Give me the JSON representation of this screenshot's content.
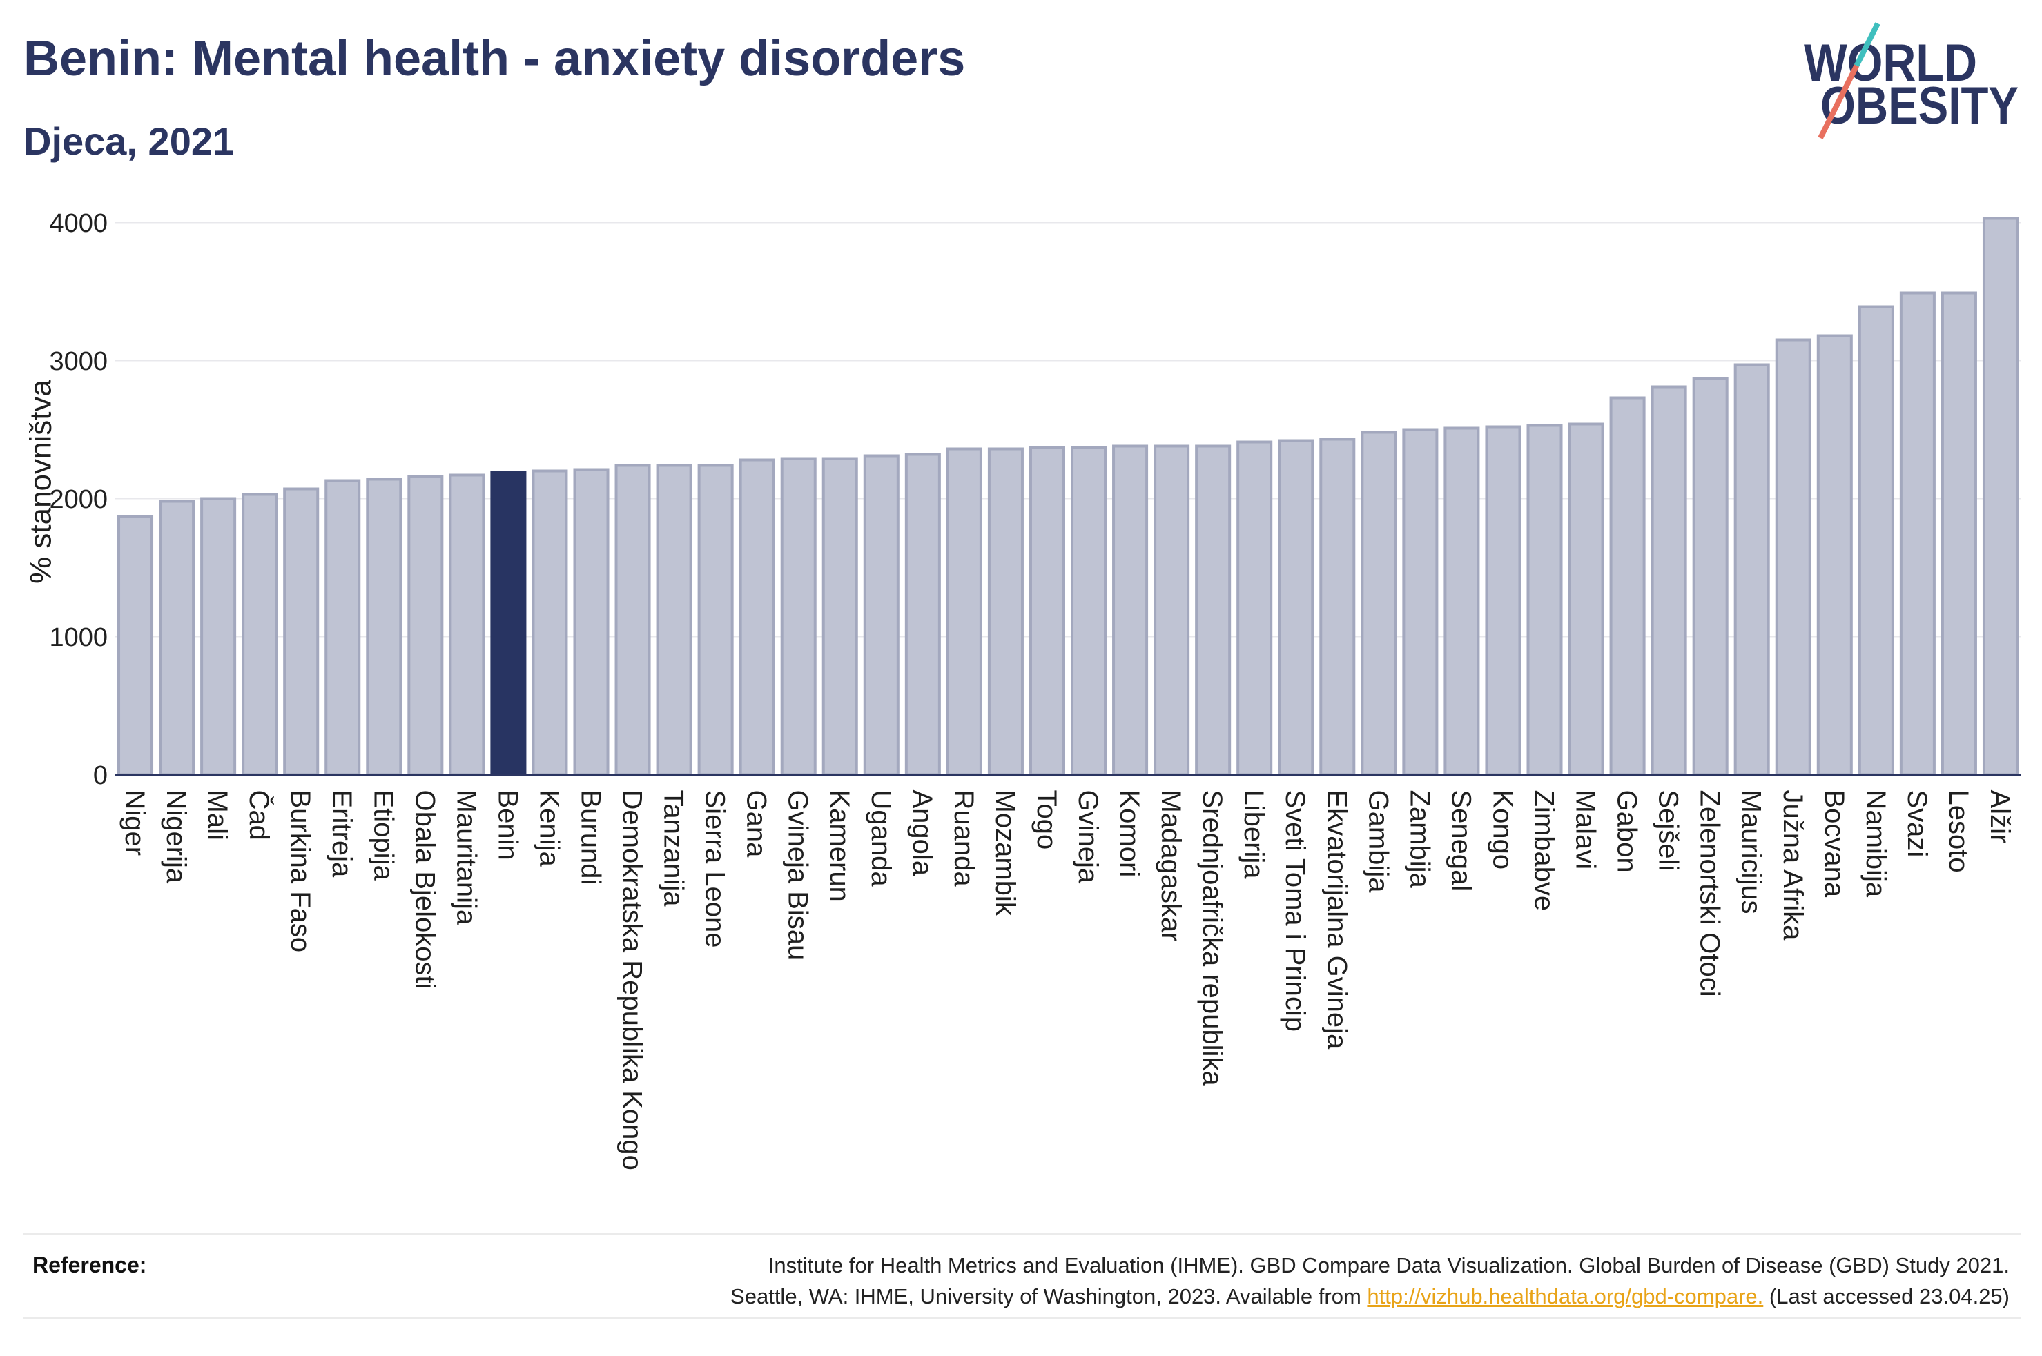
{
  "logo": {
    "line1": "WORLD",
    "line2": "OBESITY",
    "colors": {
      "text": "#2b3561",
      "teal": "#3fbfbe",
      "coral": "#e8705f"
    }
  },
  "chart_data": {
    "type": "bar",
    "title": "Benin: Mental health - anxiety disorders",
    "subtitle": "Djeca, 2021",
    "ylabel": "% stanovništva",
    "ylim": [
      0,
      4150
    ],
    "yticks": [
      0,
      1000,
      2000,
      3000,
      4000
    ],
    "grid": true,
    "highlight_category": "Benin",
    "colors": {
      "bar": "#bfc3d3",
      "bar_stroke": "#a3a8be",
      "highlight": "#283462",
      "axis": "#2b3561",
      "grid": "#e8e8ec"
    },
    "categories": [
      "Niger",
      "Nigerija",
      "Mali",
      "Čad",
      "Burkina Faso",
      "Eritreja",
      "Etiopija",
      "Obala Bjelokosti",
      "Mauritanija",
      "Benin",
      "Kenija",
      "Burundi",
      "Demokratska Republika Kongo",
      "Tanzanija",
      "Sierra Leone",
      "Gana",
      "Gvineja Bisau",
      "Kamerun",
      "Uganda",
      "Angola",
      "Ruanda",
      "Mozambik",
      "Togo",
      "Gvineja",
      "Komori",
      "Madagaskar",
      "Srednjoafrička republika",
      "Liberija",
      "Sveti Toma i Princip",
      "Ekvatorijalna Gvineja",
      "Gambija",
      "Zambija",
      "Senegal",
      "Kongo",
      "Zimbabve",
      "Malavi",
      "Gabon",
      "Sejšeli",
      "Zelenortski Otoci",
      "Mauricijus",
      "Južna Afrika",
      "Bocvana",
      "Namibija",
      "Svazi",
      "Lesoto",
      "Alžir"
    ],
    "values": [
      1870,
      1980,
      2000,
      2030,
      2070,
      2130,
      2140,
      2160,
      2170,
      2190,
      2200,
      2210,
      2240,
      2240,
      2240,
      2280,
      2290,
      2290,
      2310,
      2320,
      2360,
      2360,
      2370,
      2370,
      2380,
      2380,
      2380,
      2410,
      2420,
      2430,
      2480,
      2500,
      2510,
      2520,
      2530,
      2540,
      2730,
      2810,
      2870,
      2970,
      3150,
      3180,
      3390,
      3490,
      3490,
      4030
    ]
  },
  "footer": {
    "reference_label": "Reference:",
    "line1": "Institute for Health Metrics and Evaluation (IHME). GBD Compare Data Visualization. Global Burden of Disease (GBD) Study 2021.",
    "line2_prefix": "Seattle, WA: IHME, University of Washington, 2023. Available from ",
    "link_text": "http://vizhub.healthdata.org/gbd-compare.",
    "line2_suffix": " (Last accessed 23.04.25)",
    "link_color": "#e8a317"
  }
}
